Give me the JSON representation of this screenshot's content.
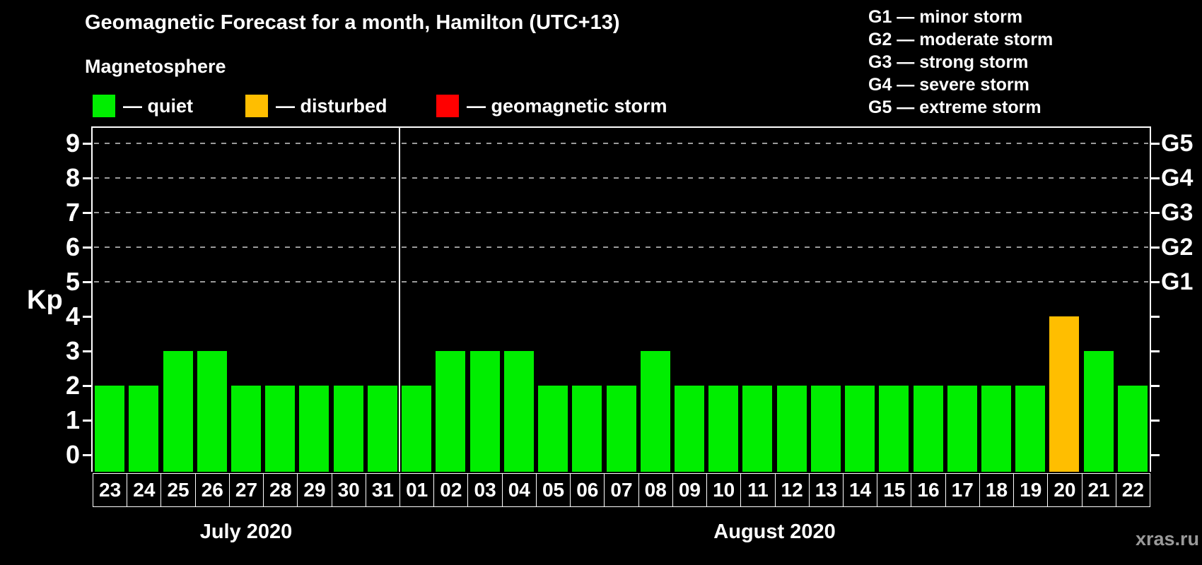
{
  "watermark": "xras.ru",
  "chart_data": {
    "type": "bar",
    "title": "Geomagnetic Forecast for a month, Hamilton (UTC+13)",
    "subtitle": "Magnetosphere",
    "ylabel": "Kp",
    "ylim": [
      0,
      9
    ],
    "ydisplay": [
      -0.5,
      9.45
    ],
    "grid": "dashed horizontal lines at Kp 5-9 only",
    "y_ticks": [
      0,
      1,
      2,
      3,
      4,
      5,
      6,
      7,
      8,
      9
    ],
    "grid_levels": [
      5,
      6,
      7,
      8,
      9
    ],
    "colors": {
      "quiet": "#00ee00",
      "disturbed": "#ffbe00",
      "storm": "#ff0000",
      "gridline": "#9a9a9a",
      "watermark_text": "#999999"
    },
    "legend": [
      {
        "status": "quiet",
        "label": "— quiet"
      },
      {
        "status": "disturbed",
        "label": "— disturbed"
      },
      {
        "status": "storm",
        "label": "— geomagnetic storm"
      }
    ],
    "g_scale_legend": [
      "G1 — minor storm",
      "G2 — moderate storm",
      "G3 — strong storm",
      "G4 — severe storm",
      "G5 — extreme storm"
    ],
    "right_labels": [
      {
        "text": "G1",
        "kp": 5
      },
      {
        "text": "G2",
        "kp": 6
      },
      {
        "text": "G3",
        "kp": 7
      },
      {
        "text": "G4",
        "kp": 8
      },
      {
        "text": "G5",
        "kp": 9
      }
    ],
    "months": [
      {
        "label": "July 2020",
        "days": [
          {
            "day": "23",
            "kp": 2,
            "status": "quiet"
          },
          {
            "day": "24",
            "kp": 2,
            "status": "quiet"
          },
          {
            "day": "25",
            "kp": 3,
            "status": "quiet"
          },
          {
            "day": "26",
            "kp": 3,
            "status": "quiet"
          },
          {
            "day": "27",
            "kp": 2,
            "status": "quiet"
          },
          {
            "day": "28",
            "kp": 2,
            "status": "quiet"
          },
          {
            "day": "29",
            "kp": 2,
            "status": "quiet"
          },
          {
            "day": "30",
            "kp": 2,
            "status": "quiet"
          },
          {
            "day": "31",
            "kp": 2,
            "status": "quiet"
          }
        ]
      },
      {
        "label": "August 2020",
        "days": [
          {
            "day": "01",
            "kp": 2,
            "status": "quiet"
          },
          {
            "day": "02",
            "kp": 3,
            "status": "quiet"
          },
          {
            "day": "03",
            "kp": 3,
            "status": "quiet"
          },
          {
            "day": "04",
            "kp": 3,
            "status": "quiet"
          },
          {
            "day": "05",
            "kp": 2,
            "status": "quiet"
          },
          {
            "day": "06",
            "kp": 2,
            "status": "quiet"
          },
          {
            "day": "07",
            "kp": 2,
            "status": "quiet"
          },
          {
            "day": "08",
            "kp": 3,
            "status": "quiet"
          },
          {
            "day": "09",
            "kp": 2,
            "status": "quiet"
          },
          {
            "day": "10",
            "kp": 2,
            "status": "quiet"
          },
          {
            "day": "11",
            "kp": 2,
            "status": "quiet"
          },
          {
            "day": "12",
            "kp": 2,
            "status": "quiet"
          },
          {
            "day": "13",
            "kp": 2,
            "status": "quiet"
          },
          {
            "day": "14",
            "kp": 2,
            "status": "quiet"
          },
          {
            "day": "15",
            "kp": 2,
            "status": "quiet"
          },
          {
            "day": "16",
            "kp": 2,
            "status": "quiet"
          },
          {
            "day": "17",
            "kp": 2,
            "status": "quiet"
          },
          {
            "day": "18",
            "kp": 2,
            "status": "quiet"
          },
          {
            "day": "19",
            "kp": 2,
            "status": "quiet"
          },
          {
            "day": "20",
            "kp": 4,
            "status": "disturbed"
          },
          {
            "day": "21",
            "kp": 3,
            "status": "quiet"
          },
          {
            "day": "22",
            "kp": 2,
            "status": "quiet"
          }
        ]
      }
    ]
  }
}
